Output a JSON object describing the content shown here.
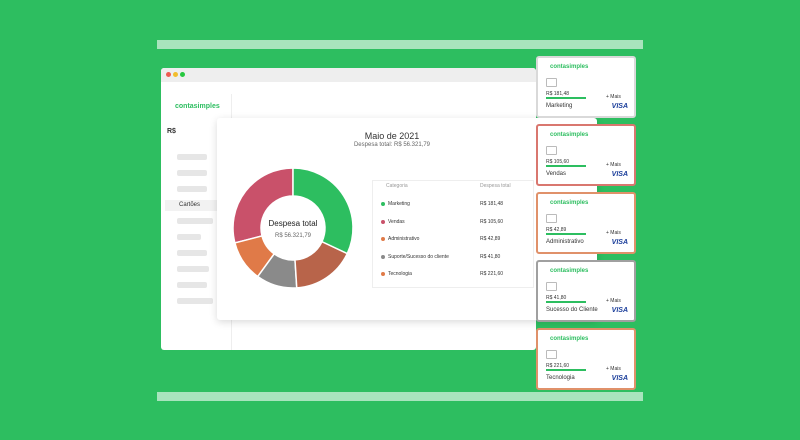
{
  "sidebar": {
    "logo": "contasimples",
    "balance": "R$",
    "active_item": "Cartões"
  },
  "report": {
    "title": "Maio de 2021",
    "subtitle": "Despesa total: R$ 56.321,79",
    "donut": {
      "center_title": "Despesa total",
      "center_value": "R$ 56.321,79",
      "segments": [
        {
          "color": "#2dbe60",
          "value": 32
        },
        {
          "color": "#b8644a",
          "value": 17
        },
        {
          "color": "#8a8a8a",
          "value": 11
        },
        {
          "color": "#e07a48",
          "value": 11
        },
        {
          "color": "#c9516a",
          "value": 29
        }
      ]
    },
    "table": {
      "headers": [
        "Categoria",
        "Despesa total"
      ],
      "rows": [
        [
          "Marketing",
          "R$ 181,48"
        ],
        [
          "Vendas",
          "R$ 105,60"
        ],
        [
          "Administrativo",
          "R$ 42,89"
        ],
        [
          "Suporte/Sucesso do cliente",
          "R$ 41,80"
        ],
        [
          "Tecnologia",
          "R$ 221,60"
        ]
      ],
      "dot_colors": [
        "#2dbe60",
        "#c9516a",
        "#e07a48",
        "#8a8a8a",
        "#e07a48"
      ]
    }
  },
  "cards": [
    {
      "brand": "contasimples",
      "amount": "R$ 181,48",
      "more": "+ Mais",
      "category": "Marketing",
      "network": "VISA",
      "border": "#d9d9d9"
    },
    {
      "brand": "contasimples",
      "amount": "R$ 105,60",
      "more": "+ Mais",
      "category": "Vendas",
      "network": "VISA",
      "border": "#d9776f"
    },
    {
      "brand": "contasimples",
      "amount": "R$ 42,89",
      "more": "+ Mais",
      "category": "Administrativo",
      "network": "VISA",
      "border": "#e0916a"
    },
    {
      "brand": "contasimples",
      "amount": "R$ 41,80",
      "more": "+ Mais",
      "category": "Sucesso do Cliente",
      "network": "VISA",
      "border": "#a0a0a0"
    },
    {
      "brand": "contasimples",
      "amount": "R$ 221,60",
      "more": "+ Mais",
      "category": "Tecnologia",
      "network": "VISA",
      "border": "#e0916a"
    }
  ]
}
